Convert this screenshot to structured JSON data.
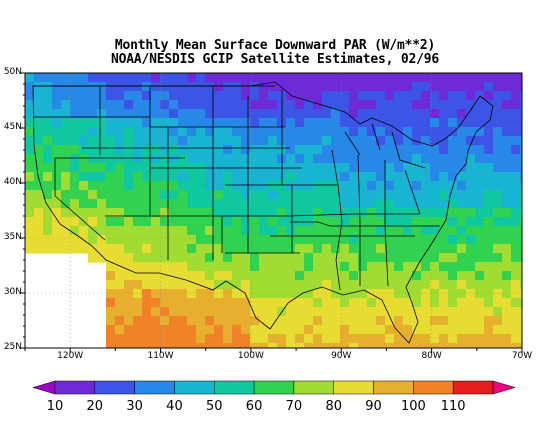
{
  "title": {
    "line1": "Monthly Mean Surface Downward PAR (W/m**2)",
    "line2": "NOAA/NESDIS GCIP Satellite Estimates, 02/96"
  },
  "map": {
    "lat_labels": [
      "50N",
      "45N",
      "40N",
      "35N",
      "30N",
      "25N"
    ],
    "lon_labels": [
      "120W",
      "110W",
      "100W",
      "90W",
      "80W",
      "70W"
    ],
    "lat_range": [
      25,
      50
    ],
    "lon_range": [
      -125,
      -70
    ],
    "field_trend": "values increase from ~20-30 in the north to ~80-100 in the southwest"
  },
  "colorbar": {
    "labels": [
      "10",
      "20",
      "30",
      "40",
      "50",
      "60",
      "70",
      "80",
      "90",
      "100",
      "110"
    ],
    "colors": [
      "#a000c8",
      "#6e2ad6",
      "#3c55e6",
      "#2888e8",
      "#18b4d2",
      "#10c8a0",
      "#30d250",
      "#a0dc32",
      "#e6dc32",
      "#e6af2d",
      "#f08228",
      "#e61e1e",
      "#f00082"
    ]
  }
}
